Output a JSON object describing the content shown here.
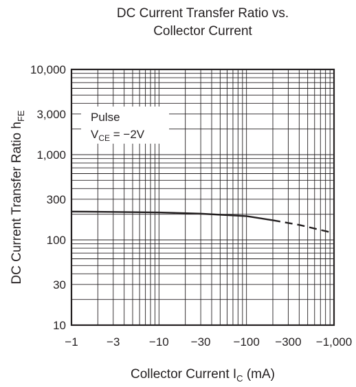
{
  "chart_data": {
    "type": "line",
    "title": [
      "DC Current Transfer Ratio vs.",
      "Collector Current"
    ],
    "xlabel": {
      "text": "Collector Current  I",
      "sub": "C",
      "suffix": "  (mA)"
    },
    "ylabel": {
      "text": "DC Current Transfer Ratio  h",
      "sub": "FE"
    },
    "x_scale": "log",
    "y_scale": "log",
    "xlim": [
      -1,
      -1000
    ],
    "ylim": [
      10,
      10000
    ],
    "x_ticks": [
      -1,
      -3,
      -10,
      -30,
      -100,
      -300,
      -1000
    ],
    "x_tick_labels": [
      "−1",
      "−3",
      "−10",
      "−30",
      "−100",
      "−300",
      "−1,000"
    ],
    "y_ticks": [
      10,
      30,
      100,
      300,
      1000,
      3000,
      10000
    ],
    "y_tick_labels": [
      "10",
      "30",
      "100",
      "300",
      "1,000",
      "3,000",
      "10,000"
    ],
    "grid": true,
    "annotation": {
      "line1": "Pulse",
      "line2_prefix": "V",
      "line2_sub": "CE",
      "line2_suffix": " = −2V"
    },
    "series": [
      {
        "style": "solid",
        "x": [
          -1,
          -3,
          -10,
          -30,
          -100,
          -200
        ],
        "y": [
          215,
          213,
          210,
          203,
          190,
          170
        ]
      },
      {
        "style": "dashed",
        "x": [
          -200,
          -400,
          -700,
          -1000
        ],
        "y": [
          170,
          150,
          131,
          120
        ]
      }
    ]
  }
}
